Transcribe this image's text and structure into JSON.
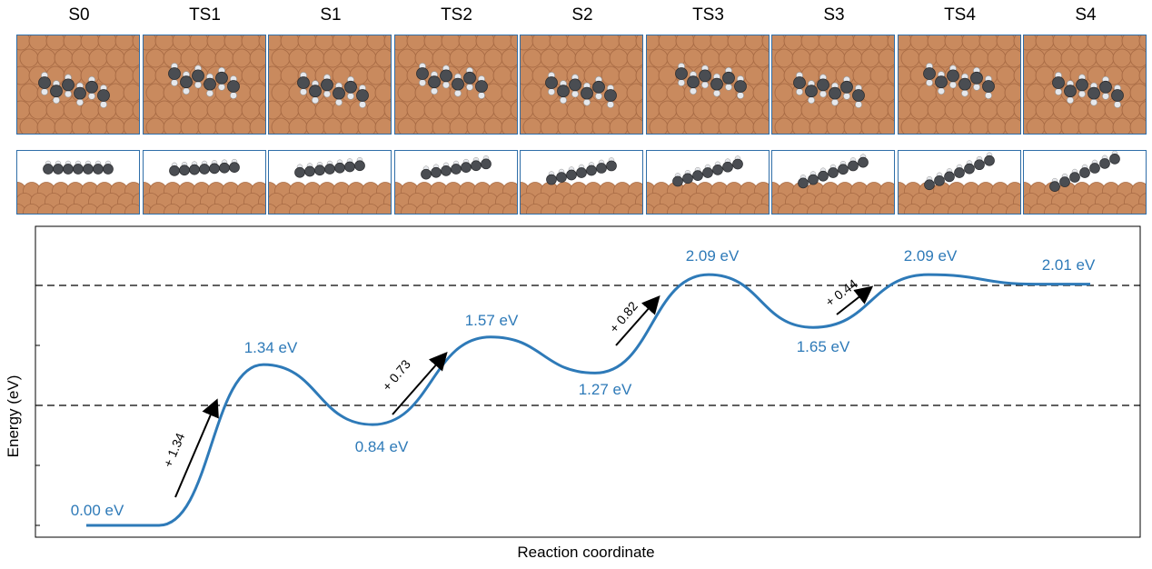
{
  "states": [
    "S0",
    "TS1",
    "S1",
    "TS2",
    "S2",
    "TS3",
    "S3",
    "TS4",
    "S4"
  ],
  "chart_data": {
    "type": "line",
    "xlabel": "Reaction coordinate",
    "ylabel": "Energy (eV)",
    "points": [
      {
        "state": "S0",
        "energy": 0.0,
        "label": "0.00 eV"
      },
      {
        "state": "TS1",
        "energy": 1.34,
        "label": "1.34 eV"
      },
      {
        "state": "S1",
        "energy": 0.84,
        "label": "0.84 eV"
      },
      {
        "state": "TS2",
        "energy": 1.57,
        "label": "1.57 eV"
      },
      {
        "state": "S2",
        "energy": 1.27,
        "label": "1.27 eV"
      },
      {
        "state": "TS3",
        "energy": 2.09,
        "label": "2.09 eV"
      },
      {
        "state": "S3",
        "energy": 1.65,
        "label": "1.65 eV"
      },
      {
        "state": "TS4",
        "energy": 2.09,
        "label": "2.09 eV"
      },
      {
        "state": "S4",
        "energy": 2.01,
        "label": "2.01 eV"
      }
    ],
    "barriers": [
      "+ 1.34",
      "+ 0.73",
      "+ 0.82",
      "+ 0.44"
    ],
    "reference_lines": [
      1.0,
      2.0
    ],
    "ylim": [
      0,
      2.5
    ],
    "line_color": "#2e7ab8",
    "label_color": "#2e7ab8"
  },
  "colors": {
    "surface": "#c98a5e",
    "surface_shadow": "#a86b45",
    "carbon": "#4a4d52",
    "hydrogen": "#e6e8ec",
    "panel_border": "#2f6ea8"
  }
}
